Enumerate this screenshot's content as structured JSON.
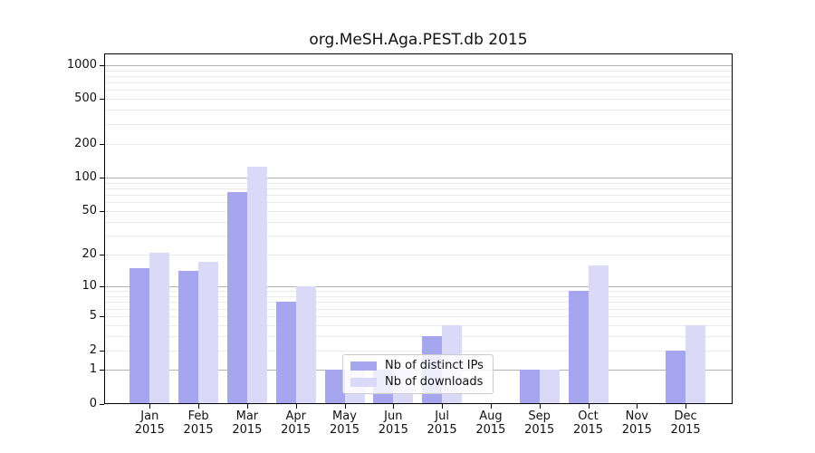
{
  "title": "org.MeSH.Aga.PEST.db 2015",
  "legend": {
    "items": [
      {
        "label": "Nb of distinct IPs",
        "color": "#a5a5f0"
      },
      {
        "label": "Nb of downloads",
        "color": "#dadaf8"
      }
    ]
  },
  "y_axis": {
    "ticks": [
      0,
      1,
      2,
      5,
      10,
      20,
      50,
      100,
      200,
      500,
      1000
    ]
  },
  "x_axis": {
    "months": [
      "Jan",
      "Feb",
      "Mar",
      "Apr",
      "May",
      "Jun",
      "Jul",
      "Aug",
      "Sep",
      "Oct",
      "Nov",
      "Dec"
    ],
    "year": "2015"
  },
  "chart_data": {
    "type": "bar",
    "title": "org.MeSH.Aga.PEST.db 2015",
    "categories": [
      "Jan 2015",
      "Feb 2015",
      "Mar 2015",
      "Apr 2015",
      "May 2015",
      "Jun 2015",
      "Jul 2015",
      "Aug 2015",
      "Sep 2015",
      "Oct 2015",
      "Nov 2015",
      "Dec 2015"
    ],
    "series": [
      {
        "name": "Nb of distinct IPs",
        "color": "#a5a5f0",
        "values": [
          15,
          14,
          74,
          7,
          1,
          1,
          3,
          0,
          1,
          9,
          0,
          2
        ]
      },
      {
        "name": "Nb of downloads",
        "color": "#dadaf8",
        "values": [
          21,
          17,
          125,
          10,
          1,
          1,
          4,
          0,
          1,
          16,
          0,
          4
        ]
      }
    ],
    "xlabel": "",
    "ylabel": "",
    "y_scale": "log10(1+v)",
    "y_ticks": [
      0,
      1,
      2,
      5,
      10,
      20,
      50,
      100,
      200,
      500,
      1000
    ],
    "ylim_top_value": 1268,
    "grid": "horizontal, major decades darker, log minors lighter",
    "legend_position": "lower center inside plot"
  }
}
